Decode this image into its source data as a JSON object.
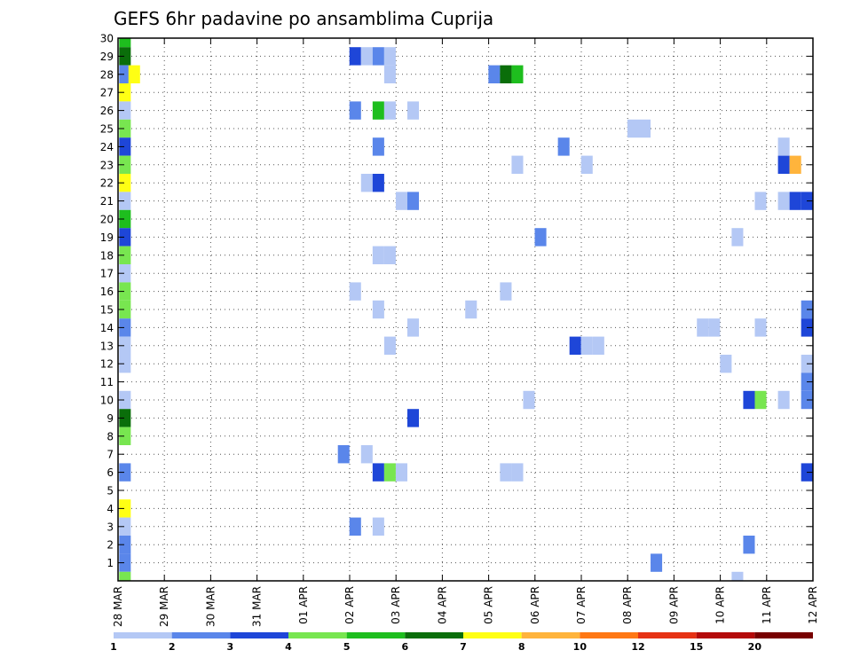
{
  "chart_data": {
    "type": "heatmap",
    "title": "GEFS 6hr padavine po ansamblima Cuprija",
    "xlabel": "",
    "ylabel": "",
    "x_ticks": [
      "28 MAR",
      "29 MAR",
      "30 MAR",
      "31 MAR",
      "01 APR",
      "02 APR",
      "03 APR",
      "04 APR",
      "05 APR",
      "06 APR",
      "07 APR",
      "08 APR",
      "09 APR",
      "10 APR",
      "11 APR",
      "12 APR"
    ],
    "x_range_days": [
      0,
      15
    ],
    "y_ticks": [
      1,
      2,
      3,
      4,
      5,
      6,
      7,
      8,
      9,
      10,
      11,
      12,
      13,
      14,
      15,
      16,
      17,
      18,
      19,
      20,
      21,
      22,
      23,
      24,
      25,
      26,
      27,
      28,
      29,
      30
    ],
    "y_range": [
      0,
      30
    ],
    "grid": true,
    "step_hours": 6,
    "colorbar": {
      "position": "bottom",
      "labels": [
        "1",
        "2",
        "3",
        "4",
        "5",
        "6",
        "7",
        "8",
        "10",
        "12",
        "15",
        "20"
      ],
      "colors": [
        "#b4c8f5",
        "#5a86ea",
        "#1e46d8",
        "#78e650",
        "#1ebe1e",
        "#0a6e0a",
        "#ffff14",
        "#ffb43c",
        "#ff7814",
        "#e63214",
        "#b40a0a",
        "#780000"
      ]
    },
    "points": [
      [
        0.15,
        30,
        4
      ],
      [
        0.15,
        29,
        5
      ],
      [
        0.15,
        28,
        1
      ],
      [
        0.35,
        28,
        6
      ],
      [
        0.15,
        27,
        6
      ],
      [
        0.15,
        26,
        0
      ],
      [
        0.15,
        25,
        3
      ],
      [
        0.15,
        24,
        2
      ],
      [
        0.15,
        23,
        3
      ],
      [
        0.15,
        22,
        6
      ],
      [
        0.15,
        21,
        0
      ],
      [
        0.15,
        20,
        4
      ],
      [
        0.15,
        19,
        2
      ],
      [
        0.15,
        18,
        3
      ],
      [
        0.15,
        17,
        0
      ],
      [
        0.15,
        16,
        3
      ],
      [
        0.15,
        15,
        3
      ],
      [
        0.15,
        14,
        1
      ],
      [
        0.15,
        13,
        0
      ],
      [
        0.15,
        12,
        0
      ],
      [
        0.15,
        10,
        0
      ],
      [
        0.15,
        9,
        5
      ],
      [
        0.15,
        8,
        3
      ],
      [
        0.15,
        6,
        1
      ],
      [
        0.15,
        4,
        6
      ],
      [
        0.15,
        3,
        0
      ],
      [
        0.15,
        2,
        1
      ],
      [
        0.15,
        1,
        1
      ],
      [
        0.15,
        0,
        3
      ],
      [
        5.12,
        29,
        2
      ],
      [
        5.37,
        29,
        0
      ],
      [
        5.62,
        29,
        1
      ],
      [
        5.87,
        29,
        0
      ],
      [
        5.87,
        28,
        0
      ],
      [
        8.12,
        28,
        1
      ],
      [
        8.37,
        28,
        5
      ],
      [
        8.62,
        28,
        4
      ],
      [
        5.12,
        26,
        1
      ],
      [
        5.62,
        26,
        4
      ],
      [
        5.87,
        26,
        0
      ],
      [
        6.37,
        26,
        0
      ],
      [
        11.12,
        25,
        0
      ],
      [
        11.37,
        25,
        0
      ],
      [
        5.62,
        24,
        1
      ],
      [
        9.62,
        24,
        1
      ],
      [
        14.37,
        24,
        0
      ],
      [
        8.62,
        23,
        0
      ],
      [
        10.12,
        23,
        0
      ],
      [
        14.37,
        23,
        2
      ],
      [
        14.62,
        23,
        7
      ],
      [
        5.37,
        22,
        0
      ],
      [
        5.62,
        22,
        2
      ],
      [
        6.12,
        21,
        0
      ],
      [
        6.37,
        21,
        1
      ],
      [
        13.87,
        21,
        0
      ],
      [
        14.37,
        21,
        0
      ],
      [
        14.62,
        21,
        2
      ],
      [
        14.87,
        21,
        2
      ],
      [
        9.12,
        19,
        1
      ],
      [
        13.37,
        19,
        0
      ],
      [
        5.62,
        18,
        0
      ],
      [
        5.87,
        18,
        0
      ],
      [
        5.12,
        16,
        0
      ],
      [
        8.37,
        16,
        0
      ],
      [
        5.62,
        15,
        0
      ],
      [
        7.62,
        15,
        0
      ],
      [
        14.87,
        15,
        1
      ],
      [
        6.37,
        14,
        0
      ],
      [
        12.62,
        14,
        0
      ],
      [
        12.87,
        14,
        0
      ],
      [
        13.87,
        14,
        0
      ],
      [
        14.87,
        14,
        2
      ],
      [
        5.87,
        13,
        0
      ],
      [
        9.87,
        13,
        2
      ],
      [
        10.12,
        13,
        0
      ],
      [
        10.37,
        13,
        0
      ],
      [
        13.12,
        12,
        0
      ],
      [
        14.87,
        12,
        0
      ],
      [
        14.87,
        11,
        1
      ],
      [
        8.87,
        10,
        0
      ],
      [
        13.62,
        10,
        2
      ],
      [
        13.87,
        10,
        3
      ],
      [
        14.37,
        10,
        0
      ],
      [
        14.87,
        10,
        1
      ],
      [
        6.37,
        9,
        2
      ],
      [
        4.87,
        7,
        1
      ],
      [
        5.37,
        7,
        0
      ],
      [
        5.62,
        6,
        2
      ],
      [
        5.87,
        6,
        3
      ],
      [
        6.12,
        6,
        0
      ],
      [
        8.37,
        6,
        0
      ],
      [
        8.62,
        6,
        0
      ],
      [
        14.87,
        6,
        2
      ],
      [
        5.12,
        3,
        1
      ],
      [
        5.62,
        3,
        0
      ],
      [
        13.62,
        2,
        1
      ],
      [
        11.62,
        1,
        1
      ],
      [
        13.37,
        0,
        0
      ]
    ]
  }
}
